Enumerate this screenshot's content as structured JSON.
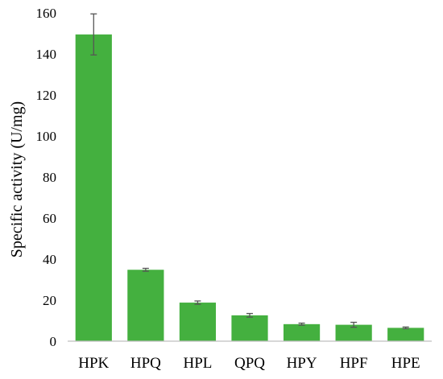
{
  "chart_data": {
    "type": "bar",
    "title": "",
    "xlabel": "",
    "ylabel": "Specific activity  (U/mg)",
    "categories": [
      "HPK",
      "HPQ",
      "HPL",
      "QPQ",
      "HPY",
      "HPF",
      "HPE"
    ],
    "values": [
      149.5,
      34.8,
      18.8,
      12.6,
      8.3,
      8.0,
      6.5
    ],
    "errors": [
      10.0,
      0.7,
      0.8,
      0.9,
      0.5,
      1.2,
      0.4
    ],
    "ylim": [
      0,
      160
    ],
    "yticks": [
      0,
      20,
      40,
      60,
      80,
      100,
      120,
      140,
      160
    ],
    "grid": false,
    "legend": "none",
    "bar_color": "#44b03f",
    "error_color": "#555555"
  }
}
